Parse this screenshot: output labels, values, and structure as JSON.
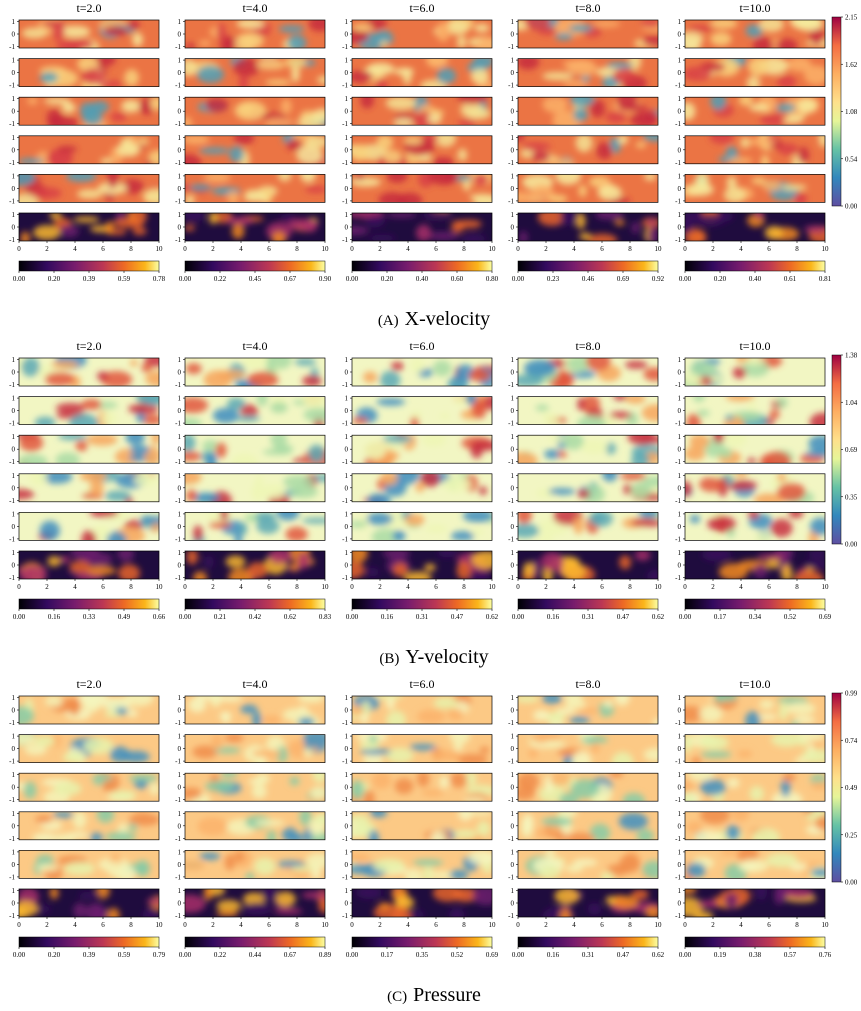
{
  "figure": {
    "y_ticks": [
      "1",
      "0",
      "-1"
    ],
    "x_ticks": [
      "0",
      "2",
      "4",
      "6",
      "8",
      "10"
    ],
    "subfigures": [
      {
        "label": "(A)",
        "title": "X-velocity",
        "times": [
          "t=2.0",
          "t=4.0",
          "t=6.0",
          "t=8.0",
          "t=10.0"
        ],
        "colorbar_ticks": [
          "0.00",
          "0.54",
          "1.08",
          "1.62",
          "2.15"
        ],
        "error_colorbar_ticks": [
          [
            "0.00",
            "0.20",
            "0.39",
            "0.59",
            "0.78"
          ],
          [
            "0.00",
            "0.22",
            "0.45",
            "0.67",
            "0.90"
          ],
          [
            "0.00",
            "0.20",
            "0.40",
            "0.60",
            "0.80"
          ],
          [
            "0.00",
            "0.23",
            "0.46",
            "0.69",
            "0.92"
          ],
          [
            "0.00",
            "0.20",
            "0.40",
            "0.61",
            "0.81"
          ]
        ]
      },
      {
        "label": "(B)",
        "title": "Y-velocity",
        "times": [
          "t=2.0",
          "t=4.0",
          "t=6.0",
          "t=8.0",
          "t=10.0"
        ],
        "colorbar_ticks": [
          "0.00",
          "0.35",
          "0.69",
          "1.04",
          "1.38"
        ],
        "error_colorbar_ticks": [
          [
            "0.00",
            "0.16",
            "0.33",
            "0.49",
            "0.66"
          ],
          [
            "0.00",
            "0.21",
            "0.42",
            "0.62",
            "0.83"
          ],
          [
            "0.00",
            "0.16",
            "0.31",
            "0.47",
            "0.62"
          ],
          [
            "0.00",
            "0.16",
            "0.31",
            "0.47",
            "0.62"
          ],
          [
            "0.00",
            "0.17",
            "0.34",
            "0.52",
            "0.69"
          ]
        ]
      },
      {
        "label": "(C)",
        "title": "Pressure",
        "times": [
          "t=2.0",
          "t=4.0",
          "t=6.0",
          "t=8.0",
          "t=10.0"
        ],
        "colorbar_ticks": [
          "0.00",
          "0.25",
          "0.49",
          "0.74",
          "0.99"
        ],
        "error_colorbar_ticks": [
          [
            "0.00",
            "0.20",
            "0.39",
            "0.59",
            "0.79"
          ],
          [
            "0.00",
            "0.22",
            "0.44",
            "0.67",
            "0.89"
          ],
          [
            "0.00",
            "0.17",
            "0.35",
            "0.52",
            "0.69"
          ],
          [
            "0.00",
            "0.16",
            "0.31",
            "0.47",
            "0.62"
          ],
          [
            "0.00",
            "0.19",
            "0.38",
            "0.57",
            "0.76"
          ]
        ]
      }
    ]
  }
}
